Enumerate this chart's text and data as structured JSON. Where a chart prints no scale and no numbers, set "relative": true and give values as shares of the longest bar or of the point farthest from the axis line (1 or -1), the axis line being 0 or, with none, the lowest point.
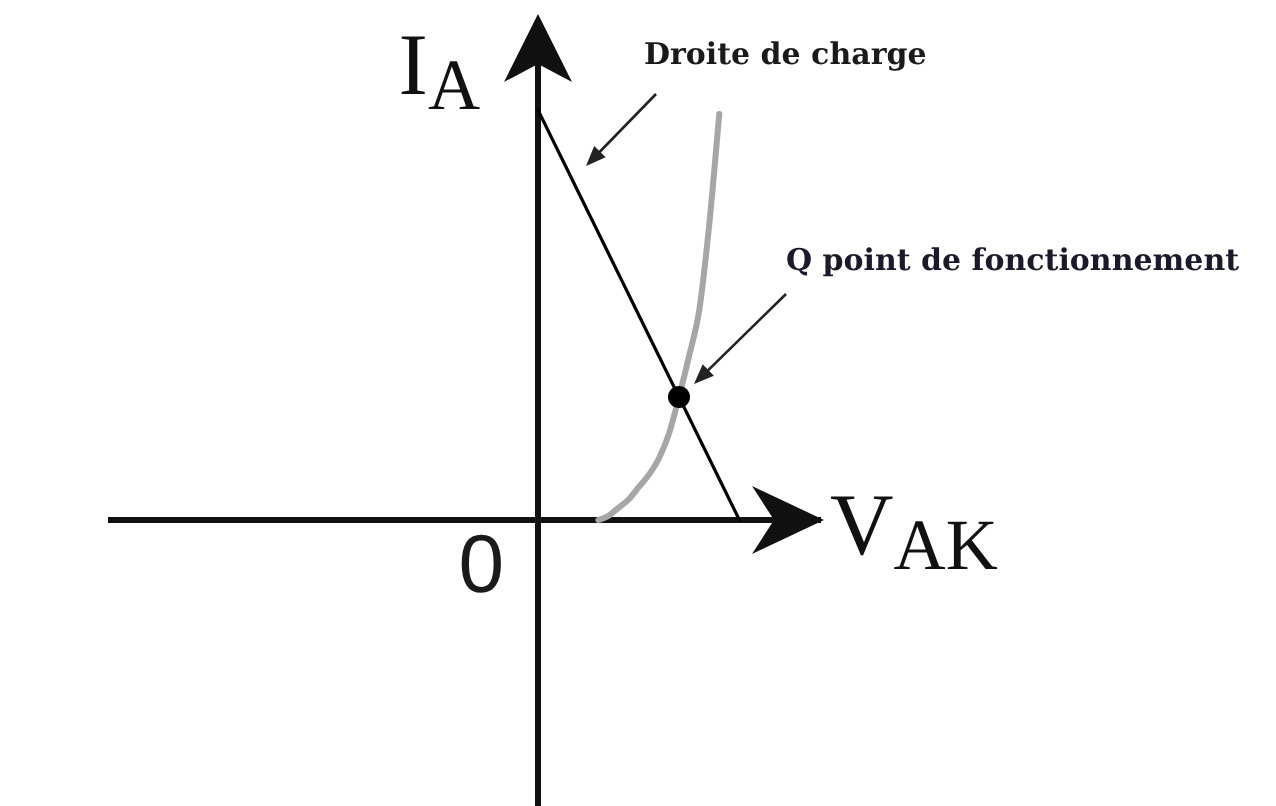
{
  "chart_data": {
    "type": "line",
    "relative": true,
    "xlabel": "V$_{AK}$",
    "ylabel": "I$_{A}$",
    "marker": "none",
    "legend": false,
    "categories": [
      null,
      null,
      null,
      null,
      null,
      null,
      null,
      null,
      null,
      null,
      null,
      null,
      null,
      null,
      null,
      null,
      null,
      null,
      null,
      null,
      null,
      null,
      null,
      null,
      null,
      null,
      null,
      null,
      null
    ],
    "series": [
      {
        "color": "#000000",
        "values": [
          1,
          0.95,
          0.9,
          0.85,
          0.8,
          0.75,
          0.7,
          0.65,
          0.6,
          0.55,
          0.5,
          0.45,
          0.4,
          0.35,
          0.3,
          0.25,
          0.2,
          0.15,
          0.1,
          0.05,
          0,
          null,
          null,
          null,
          null,
          null,
          null,
          null,
          null
        ]
      },
      {
        "color": "#a6a6a6",
        "values": [
          null,
          null,
          null,
          null,
          null,
          null,
          0,
          0.01,
          0.03,
          0.05,
          0.08,
          0.11,
          0.15,
          0.21,
          0.3,
          0.4,
          0.51,
          0.72,
          0.99,
          null,
          null,
          null,
          null,
          null,
          null,
          null,
          null,
          null,
          null
        ]
      },
      {
        "color": "#000000",
        "marker": "circle",
        "values": [
          null,
          null,
          null,
          null,
          null,
          null,
          null,
          null,
          null,
          null,
          null,
          null,
          null,
          null,
          0.3,
          null,
          null,
          null,
          null,
          null,
          null,
          null,
          null,
          null,
          null,
          null,
          null,
          null,
          null
        ]
      }
    ],
    "annotations": [
      "Droite de charge",
      "Q point de fonctionnement",
      "0"
    ]
  }
}
